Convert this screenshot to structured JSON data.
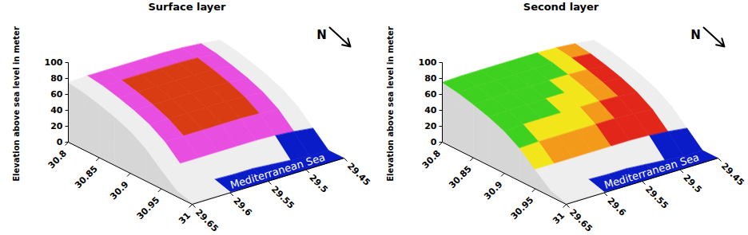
{
  "chart_data": [
    {
      "type": "surface",
      "title": "Surface layer",
      "zlabel": "Elevation above sea level in meter",
      "annotation": "Mediterranean Sea",
      "north_label": "N",
      "x": [
        30.8,
        30.825,
        30.85,
        30.875,
        30.9,
        30.925,
        30.95,
        30.975,
        31
      ],
      "y": [
        29.45,
        29.475,
        29.5,
        29.525,
        29.55,
        29.575,
        29.6,
        29.625,
        29.65
      ],
      "z": [
        [
          70,
          73,
          75,
          76,
          76,
          76,
          76,
          76,
          75
        ],
        [
          67,
          70,
          72,
          73,
          73,
          73,
          73,
          73,
          72
        ],
        [
          62,
          65,
          67,
          68,
          68,
          68,
          68,
          68,
          67
        ],
        [
          56,
          59,
          61,
          62,
          62,
          62,
          62,
          62,
          61
        ],
        [
          48,
          51,
          53,
          54,
          54,
          54,
          54,
          54,
          53
        ],
        [
          36,
          39,
          41,
          42,
          42,
          42,
          42,
          42,
          41
        ],
        [
          18,
          21,
          23,
          24,
          24,
          24,
          24,
          24,
          24
        ],
        [
          0,
          0,
          2,
          4,
          6,
          6,
          7,
          8,
          8
        ],
        [
          0,
          0,
          0,
          0,
          0,
          0,
          1,
          2,
          2
        ]
      ],
      "colors": [
        [
          "#eeeeee",
          "#e84fe0",
          "#e84fe0",
          "#e84fe0",
          "#e84fe0",
          "#e84fe0",
          "#e84fe0",
          "#eeeeee"
        ],
        [
          "#eeeeee",
          "#e84fe0",
          "#d93b12",
          "#d93b12",
          "#d93b12",
          "#d93b12",
          "#e84fe0",
          "#eeeeee"
        ],
        [
          "#eeeeee",
          "#e84fe0",
          "#d93b12",
          "#d93b12",
          "#d93b12",
          "#d93b12",
          "#e84fe0",
          "#eeeeee"
        ],
        [
          "#eeeeee",
          "#e84fe0",
          "#d93b12",
          "#d93b12",
          "#d93b12",
          "#d93b12",
          "#e84fe0",
          "#eeeeee"
        ],
        [
          "#eeeeee",
          "#e84fe0",
          "#d93b12",
          "#d93b12",
          "#d93b12",
          "#d93b12",
          "#e84fe0",
          "#eeeeee"
        ],
        [
          "#eeeeee",
          "#e84fe0",
          "#e84fe0",
          "#e84fe0",
          "#e84fe0",
          "#e84fe0",
          "#e84fe0",
          "#eeeeee"
        ],
        [
          "#0a1cc8",
          "#0a1cc8",
          "#eeeeee",
          "#eeeeee",
          "#eeeeee",
          "#eeeeee",
          "#eeeeee",
          "#eeeeee"
        ],
        [
          "#0a1cc8",
          "#0a1cc8",
          "#0a1cc8",
          "#0a1cc8",
          "#0a1cc8",
          "#0a1cc8",
          "#eeeeee",
          "#eeeeee"
        ]
      ],
      "xlim": [
        30.8,
        31
      ],
      "xticks": [
        30.8,
        30.85,
        30.9,
        30.95,
        31
      ],
      "ylim": [
        29.45,
        29.65
      ],
      "yticks": [
        29.45,
        29.5,
        29.55,
        29.6,
        29.65
      ],
      "zlim": [
        0,
        100
      ],
      "zticks": [
        0,
        20,
        40,
        60,
        80,
        100
      ]
    },
    {
      "type": "surface",
      "title": "Second layer",
      "zlabel": "Elevation above sea level in meter",
      "annotation": "Mediterranean Sea",
      "north_label": "N",
      "x": [
        30.8,
        30.825,
        30.85,
        30.875,
        30.9,
        30.925,
        30.95,
        30.975,
        31
      ],
      "y": [
        29.45,
        29.475,
        29.5,
        29.525,
        29.55,
        29.575,
        29.6,
        29.625,
        29.65
      ],
      "z": [
        [
          70,
          73,
          75,
          76,
          76,
          76,
          76,
          76,
          75
        ],
        [
          67,
          70,
          72,
          73,
          73,
          73,
          73,
          73,
          72
        ],
        [
          62,
          65,
          67,
          68,
          68,
          68,
          68,
          68,
          67
        ],
        [
          56,
          59,
          61,
          62,
          62,
          62,
          62,
          62,
          61
        ],
        [
          48,
          51,
          53,
          54,
          54,
          54,
          54,
          54,
          53
        ],
        [
          36,
          39,
          41,
          42,
          42,
          42,
          42,
          42,
          41
        ],
        [
          18,
          21,
          23,
          24,
          24,
          24,
          24,
          24,
          24
        ],
        [
          0,
          0,
          2,
          4,
          6,
          6,
          7,
          8,
          8
        ],
        [
          0,
          0,
          0,
          0,
          0,
          0,
          1,
          2,
          2
        ]
      ],
      "colors": [
        [
          "#eeeeee",
          "#f39a1b",
          "#f2e51a",
          "#3fd11f",
          "#3fd11f",
          "#3fd11f",
          "#3fd11f",
          "#3fd11f"
        ],
        [
          "#eeeeee",
          "#e2261a",
          "#f2e51a",
          "#3fd11f",
          "#3fd11f",
          "#3fd11f",
          "#3fd11f",
          "#3fd11f"
        ],
        [
          "#eeeeee",
          "#e2261a",
          "#f39a1b",
          "#f2e51a",
          "#3fd11f",
          "#3fd11f",
          "#3fd11f",
          "#3fd11f"
        ],
        [
          "#eeeeee",
          "#e2261a",
          "#f39a1b",
          "#f2e51a",
          "#f2e51a",
          "#3fd11f",
          "#3fd11f",
          "#3fd11f"
        ],
        [
          "#eeeeee",
          "#e2261a",
          "#e2261a",
          "#f39a1b",
          "#f2e51a",
          "#f2e51a",
          "#f2e51a",
          "#3fd11f"
        ],
        [
          "#eeeeee",
          "#e2261a",
          "#e2261a",
          "#e2261a",
          "#f39a1b",
          "#f39a1b",
          "#f39a1b",
          "#f2e51a"
        ],
        [
          "#0a1cc8",
          "#0a1cc8",
          "#eeeeee",
          "#eeeeee",
          "#eeeeee",
          "#eeeeee",
          "#eeeeee",
          "#eeeeee"
        ],
        [
          "#0a1cc8",
          "#0a1cc8",
          "#0a1cc8",
          "#0a1cc8",
          "#0a1cc8",
          "#0a1cc8",
          "#eeeeee",
          "#eeeeee"
        ]
      ],
      "xlim": [
        30.8,
        31
      ],
      "xticks": [
        30.8,
        30.85,
        30.9,
        30.95,
        31
      ],
      "ylim": [
        29.45,
        29.65
      ],
      "yticks": [
        29.45,
        29.5,
        29.55,
        29.6,
        29.65
      ],
      "zlim": [
        0,
        100
      ],
      "zticks": [
        0,
        20,
        40,
        60,
        80,
        100
      ]
    }
  ]
}
